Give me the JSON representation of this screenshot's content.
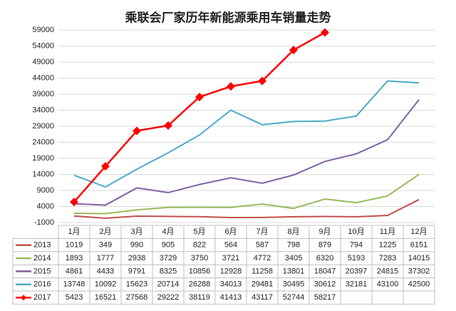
{
  "chart_data": {
    "type": "line",
    "title": "乘联会厂家历年新能源乘用车销量走势",
    "categories": [
      "1月",
      "2月",
      "3月",
      "4月",
      "5月",
      "6月",
      "7月",
      "8月",
      "9月",
      "10月",
      "11月",
      "12月"
    ],
    "ylim": [
      -1000,
      59000
    ],
    "yticks": [
      -1000,
      4000,
      9000,
      14000,
      19000,
      24000,
      29000,
      34000,
      39000,
      44000,
      49000,
      54000,
      59000
    ],
    "grid": true,
    "series": [
      {
        "name": "2013",
        "color": "#c0504d",
        "values": [
          1019,
          349,
          990,
          905,
          822,
          564,
          587,
          798,
          879,
          794,
          1225,
          6151
        ]
      },
      {
        "name": "2014",
        "color": "#9bbb59",
        "values": [
          1893,
          1777,
          2938,
          3729,
          3750,
          3721,
          4772,
          3405,
          6320,
          5193,
          7283,
          14015
        ]
      },
      {
        "name": "2015",
        "color": "#8064a2",
        "values": [
          4861,
          4433,
          9791,
          8325,
          10856,
          12928,
          11258,
          13801,
          18047,
          20397,
          24815,
          37302
        ]
      },
      {
        "name": "2016",
        "color": "#4bacc6",
        "values": [
          13748,
          10092,
          15623,
          20714,
          26288,
          34013,
          29481,
          30495,
          30612,
          32181,
          43100,
          42500
        ]
      },
      {
        "name": "2017",
        "color": "#ff0000",
        "marker": "diamond",
        "values": [
          5423,
          16521,
          27568,
          29222,
          38119,
          41413,
          43117,
          52744,
          58217,
          null,
          null,
          null
        ]
      }
    ]
  }
}
